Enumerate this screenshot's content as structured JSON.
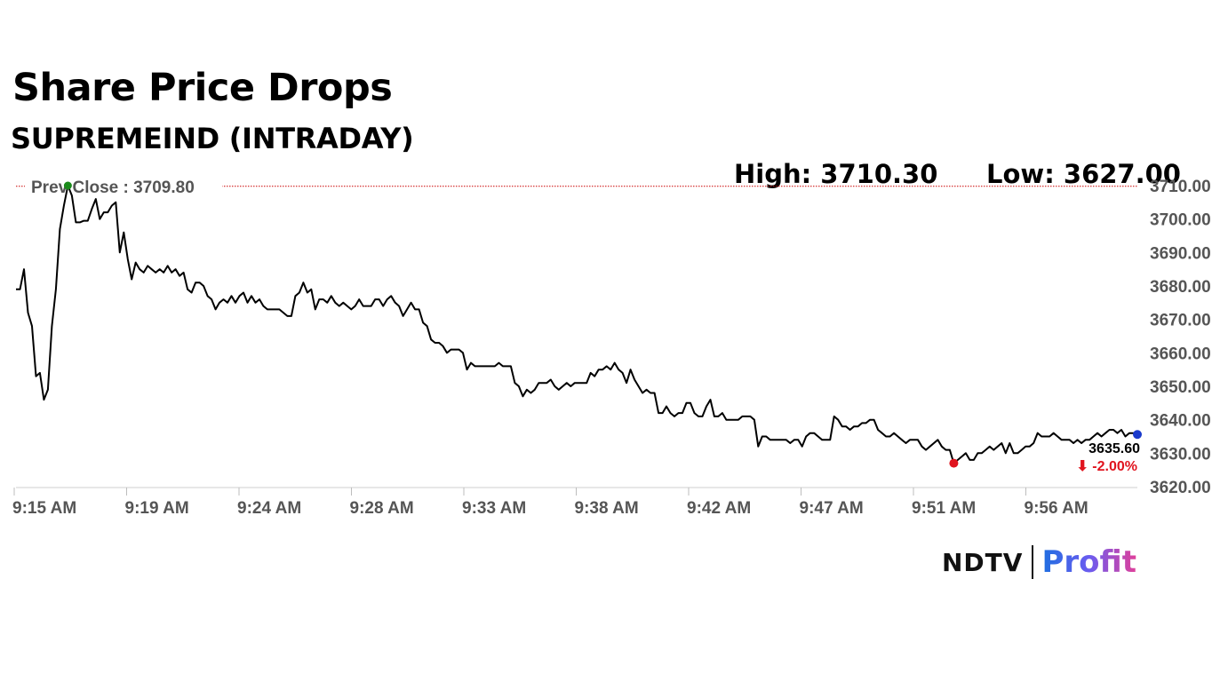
{
  "header": {
    "title": "Share Price Drops",
    "subtitle": "SUPREMEIND (INTRADAY)",
    "high_label": "High: 3710.30",
    "low_label": "Low: 3627.00"
  },
  "branding": {
    "ndtv": "NDTV",
    "profit": "Profit"
  },
  "colors": {
    "line": "#000000",
    "prev_close_line": "#cc0000",
    "prev_close_dot": "#1a8a1a",
    "low_dot": "#e0141e",
    "last_dot": "#1a3acc",
    "change_text": "#e0141e",
    "axis_text": "#555555"
  },
  "chart_data": {
    "type": "line",
    "title": "SUPREMEIND (INTRADAY)",
    "xlabel": "",
    "ylabel": "",
    "ylim": [
      3620,
      3710
    ],
    "y_ticks": [
      "3620.00",
      "3630.00",
      "3640.00",
      "3650.00",
      "3660.00",
      "3670.00",
      "3680.00",
      "3690.00",
      "3700.00",
      "3710.00"
    ],
    "x_ticks": [
      "9:15 AM",
      "9:19 AM",
      "9:24 AM",
      "9:28 AM",
      "9:33 AM",
      "9:38 AM",
      "9:42 AM",
      "9:47 AM",
      "9:51 AM",
      "9:56 AM"
    ],
    "prev_close_label": "Prev Close : 3709.80",
    "prev_close": 3709.8,
    "last_price_label": "3635.60",
    "change_label": "⬇ -2.00%",
    "last_price": 3635.6,
    "high": 3710.3,
    "low": 3627.0,
    "series": [
      {
        "values": [
          3679,
          3679,
          3685,
          3672,
          3668,
          3653,
          3654,
          3646,
          3649,
          3668,
          3679,
          3697,
          3704,
          3710,
          3707,
          3699,
          3699,
          3699.5,
          3699.5,
          3703,
          3706,
          3700,
          3702,
          3702,
          3704,
          3705,
          3690,
          3696,
          3688,
          3682,
          3687,
          3685,
          3684,
          3686,
          3685,
          3684,
          3685,
          3684,
          3686,
          3684,
          3685,
          3683,
          3684,
          3679,
          3678,
          3681,
          3681,
          3680,
          3677,
          3676,
          3673,
          3675,
          3676,
          3675,
          3677,
          3675,
          3677,
          3678,
          3675,
          3677,
          3675,
          3676,
          3674,
          3673,
          3673,
          3673,
          3673,
          3672,
          3671,
          3671,
          3677,
          3678,
          3681,
          3678,
          3679,
          3673,
          3676,
          3676,
          3675,
          3677,
          3675,
          3674,
          3675,
          3674,
          3673,
          3674,
          3676,
          3674,
          3674,
          3674,
          3676,
          3676,
          3674,
          3676,
          3677,
          3675,
          3674,
          3671,
          3673,
          3675,
          3673,
          3673,
          3669,
          3668,
          3664,
          3663,
          3663,
          3662,
          3660,
          3661,
          3661,
          3661,
          3660,
          3655,
          3657,
          3656,
          3656,
          3656,
          3656,
          3656,
          3656,
          3657,
          3656,
          3656,
          3656,
          3651,
          3650,
          3647,
          3649,
          3648,
          3649,
          3651,
          3651,
          3651,
          3652,
          3650,
          3649,
          3650,
          3651,
          3650,
          3651,
          3651,
          3651,
          3651,
          3654,
          3653,
          3655,
          3655,
          3656,
          3655,
          3657,
          3655,
          3654,
          3651,
          3655,
          3652,
          3650,
          3648,
          3649,
          3648,
          3648,
          3642,
          3642,
          3644,
          3642,
          3641,
          3642,
          3642,
          3645,
          3645,
          3642,
          3641,
          3641,
          3644,
          3646,
          3641,
          3641,
          3642,
          3640,
          3640,
          3640,
          3640,
          3641,
          3641,
          3641,
          3640,
          3632,
          3635,
          3635,
          3634,
          3634,
          3634,
          3634,
          3634,
          3633,
          3634,
          3634,
          3632,
          3635,
          3636,
          3636,
          3635,
          3634,
          3634,
          3634,
          3641,
          3640,
          3638,
          3638,
          3637,
          3638,
          3638,
          3639,
          3639,
          3640,
          3640,
          3637,
          3636,
          3635,
          3635,
          3636,
          3635,
          3634,
          3633,
          3634,
          3634,
          3634,
          3632,
          3631,
          3632,
          3633,
          3634,
          3632,
          3631,
          3631,
          3627,
          3628,
          3629,
          3630,
          3628,
          3628,
          3630,
          3630,
          3631,
          3632,
          3631,
          3632,
          3633,
          3630,
          3633,
          3630,
          3630,
          3631,
          3632,
          3632,
          3633,
          3636,
          3635,
          3635,
          3635,
          3636,
          3635,
          3634,
          3634,
          3634,
          3633,
          3634,
          3633,
          3634,
          3634,
          3635,
          3636,
          3635,
          3636,
          3637,
          3637,
          3636,
          3637,
          3635,
          3636,
          3636,
          3635.6
        ]
      }
    ]
  }
}
